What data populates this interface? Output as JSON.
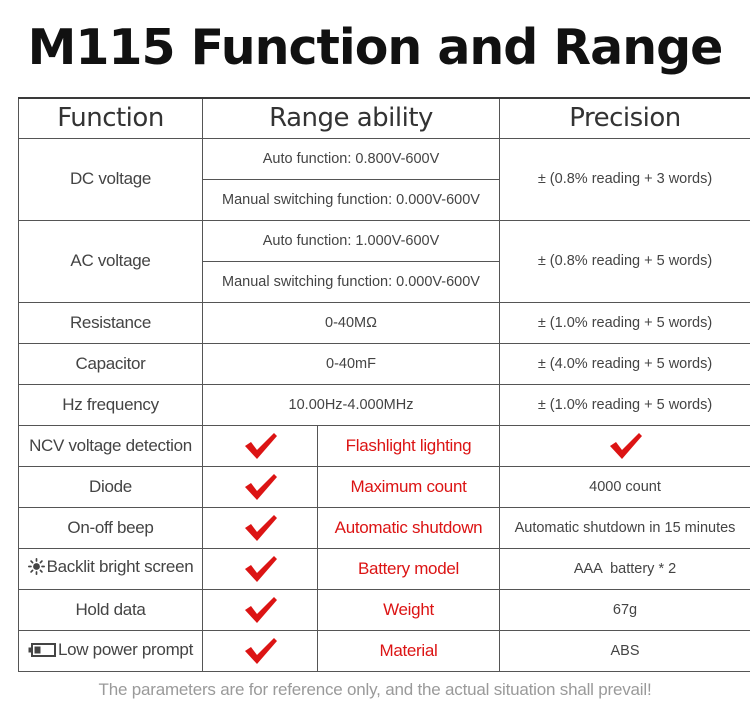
{
  "title": "M115 Function and Range",
  "headers": {
    "function": "Function",
    "range": "Range ability",
    "precision": "Precision"
  },
  "measure_rows": [
    {
      "function": "DC voltage",
      "auto": "Auto function: 0.800V-600V",
      "manual": "Manual switching function: 0.000V-600V",
      "precision": "± (0.8% reading + 3 words)"
    },
    {
      "function": "AC voltage",
      "auto": "Auto function: 1.000V-600V",
      "manual": "Manual switching function: 0.000V-600V",
      "precision": "± (0.8% reading + 5 words)"
    },
    {
      "function": "Resistance",
      "range": "0-40MΩ",
      "precision": "± (1.0% reading + 5 words)"
    },
    {
      "function": "Capacitor",
      "range": "0-40mF",
      "precision": "± (4.0% reading + 5 words)"
    },
    {
      "function": "Hz frequency",
      "range": "10.00Hz-4.000MHz",
      "precision": "± (1.0% reading + 5 words)"
    }
  ],
  "feature_rows": [
    {
      "feature": "NCV voltage detection",
      "spec_label": "Flashlight lighting",
      "spec_value": ""
    },
    {
      "feature": "Diode",
      "spec_label": "Maximum count",
      "spec_value": "4000 count"
    },
    {
      "feature": "On-off beep",
      "spec_label": "Automatic shutdown",
      "spec_value": "Automatic shutdown in 15 minutes"
    },
    {
      "feature": "Backlit bright screen",
      "spec_label": "Battery model",
      "spec_value": "AAA  battery * 2"
    },
    {
      "feature": "Hold data",
      "spec_label": "Weight",
      "spec_value": "67g"
    },
    {
      "feature": "Low power prompt",
      "spec_label": "Material",
      "spec_value": "ABS"
    }
  ],
  "footer": "The parameters are for reference only, and the actual situation shall prevail!",
  "colors": {
    "check_red": "#dc1414",
    "label_red": "#dc1414",
    "border": "#555555"
  },
  "icons": {
    "check": "check-mark-icon",
    "sun": "sun-icon",
    "battery": "battery-icon"
  }
}
